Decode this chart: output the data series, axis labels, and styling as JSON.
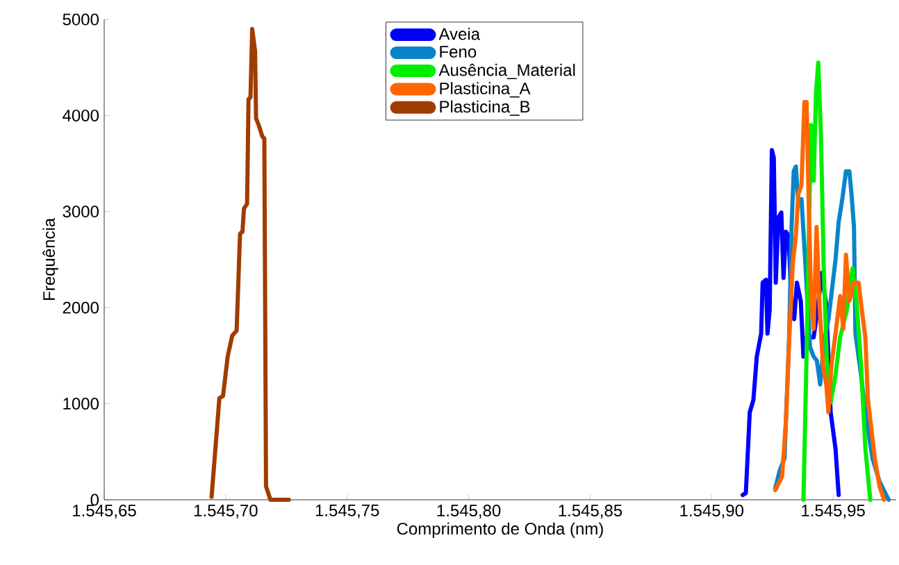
{
  "chart_data": {
    "type": "line",
    "xlabel": "Comprimento de Onda (nm)",
    "ylabel": "Frequência",
    "xlim": [
      1545.65,
      1545.976
    ],
    "ylim": [
      0,
      5000
    ],
    "xticks": [
      {
        "value": 1545.65,
        "label": "1.545,65"
      },
      {
        "value": 1545.7,
        "label": "1.545,70"
      },
      {
        "value": 1545.75,
        "label": "1.545,75"
      },
      {
        "value": 1545.8,
        "label": "1.545,80"
      },
      {
        "value": 1545.85,
        "label": "1.545,85"
      },
      {
        "value": 1545.9,
        "label": "1.545,90"
      },
      {
        "value": 1545.95,
        "label": "1.545,95"
      }
    ],
    "yticks": [
      0,
      1000,
      2000,
      3000,
      4000,
      5000
    ],
    "grid": false,
    "legend": "top",
    "marker": "none",
    "line_style": "solid",
    "series": [
      {
        "name": "Aveia",
        "color": "#0000ff",
        "x": [
          1545.9128,
          1545.9141,
          1545.9157,
          1545.9172,
          1545.9186,
          1545.9204,
          1545.921,
          1545.9224,
          1545.923,
          1545.9239,
          1545.9248,
          1545.9256,
          1545.9264,
          1545.9275,
          1545.9287,
          1545.9296,
          1545.9306,
          1545.9317,
          1545.9329,
          1545.934,
          1545.9351,
          1545.9367,
          1545.9378,
          1545.939,
          1545.9405,
          1545.942,
          1545.9436,
          1545.9453,
          1545.9472,
          1545.949,
          1545.951,
          1545.9523
        ],
        "values": [
          50,
          70,
          910,
          1040,
          1490,
          1730,
          2260,
          2290,
          1730,
          1980,
          3640,
          3560,
          2260,
          2940,
          2990,
          2310,
          2790,
          2750,
          2020,
          1880,
          2260,
          2070,
          1490,
          1690,
          null,
          1690,
          1980,
          2360,
          2020,
          910,
          530,
          50
        ]
      },
      {
        "name": "Feno",
        "color": "#0a84c8",
        "x": [
          1545.9262,
          1545.9281,
          1545.93,
          1545.9319,
          1545.9329,
          1545.9338,
          1545.9347,
          1545.9357,
          1545.937,
          1545.9386,
          1545.9405,
          1545.942,
          1545.9433,
          1545.9447,
          1545.9462,
          1545.9481,
          1545.951,
          1545.9523,
          1545.9538,
          1545.9553,
          1545.9567,
          1545.9576,
          1545.9586,
          1545.9592,
          1545.9615,
          1545.9633,
          1545.9662,
          1545.9691,
          1545.9729
        ],
        "values": [
          120,
          310,
          430,
          1690,
          2840,
          3420,
          3470,
          3080,
          3130,
          2460,
          1590,
          1490,
          1450,
          1200,
          1640,
          1880,
          2500,
          2890,
          3130,
          3420,
          3420,
          3180,
          2840,
          1730,
          1300,
          910,
          430,
          190,
          0
        ]
      },
      {
        "name": "Ausência_Material",
        "color": "#00ee00",
        "x": [
          1545.9378,
          1545.939,
          1545.9401,
          1545.9409,
          1545.942,
          1545.943,
          1545.9439,
          1545.945,
          1545.9462,
          1545.9475,
          1545.949,
          1545.951,
          1545.9529,
          1545.9557,
          1545.958,
          1545.9596,
          1545.9615,
          1545.9633,
          1545.9653
        ],
        "values": [
          0,
          1400,
          2840,
          3900,
          3320,
          4240,
          4550,
          3800,
          2360,
          1400,
          1010,
          1300,
          1690,
          1980,
          2410,
          2070,
          1400,
          530,
          0
        ]
      },
      {
        "name": "Plasticina_A",
        "color": "#ff6600",
        "x": [
          1545.9262,
          1545.929,
          1545.9306,
          1545.9319,
          1545.9334,
          1545.9347,
          1545.9357,
          1545.937,
          1545.9382,
          1545.9391,
          1545.9401,
          1545.941,
          1545.942,
          1545.9432,
          1545.9443,
          1545.9458,
          1545.9472,
          1545.9481,
          1545.9493,
          1545.951,
          1545.9529,
          1545.9542,
          1545.9553,
          1545.9567,
          1545.9586,
          1545.9605,
          1545.9618,
          1545.9633,
          1545.9643,
          1545.9672,
          1545.9691,
          1545.971
        ],
        "values": [
          100,
          240,
          820,
          1640,
          2460,
          2750,
          3180,
          3280,
          4140,
          4140,
          2940,
          2070,
          1780,
          2840,
          2070,
          1400,
          1200,
          910,
          1400,
          1730,
          2120,
          1780,
          2550,
          2070,
          2260,
          2260,
          1980,
          1690,
          1060,
          430,
          140,
          0
        ]
      },
      {
        "name": "Plasticina_B",
        "color": "#a03c00",
        "x": [
          1545.6942,
          1545.6974,
          1545.6989,
          1545.7008,
          1545.7027,
          1545.7045,
          1545.7054,
          1545.7059,
          1545.7069,
          1545.7075,
          1545.7088,
          1545.7094,
          1545.7102,
          1545.7109,
          1545.7121,
          1545.7125,
          1545.7136,
          1545.7151,
          1545.7159,
          1545.7166,
          1545.7184,
          1545.726
        ],
        "values": [
          30,
          1060,
          1080,
          1490,
          1710,
          1760,
          2410,
          2770,
          2790,
          3030,
          3080,
          4170,
          4190,
          4900,
          4670,
          3970,
          3900,
          3780,
          3760,
          140,
          0,
          0
        ]
      }
    ]
  }
}
